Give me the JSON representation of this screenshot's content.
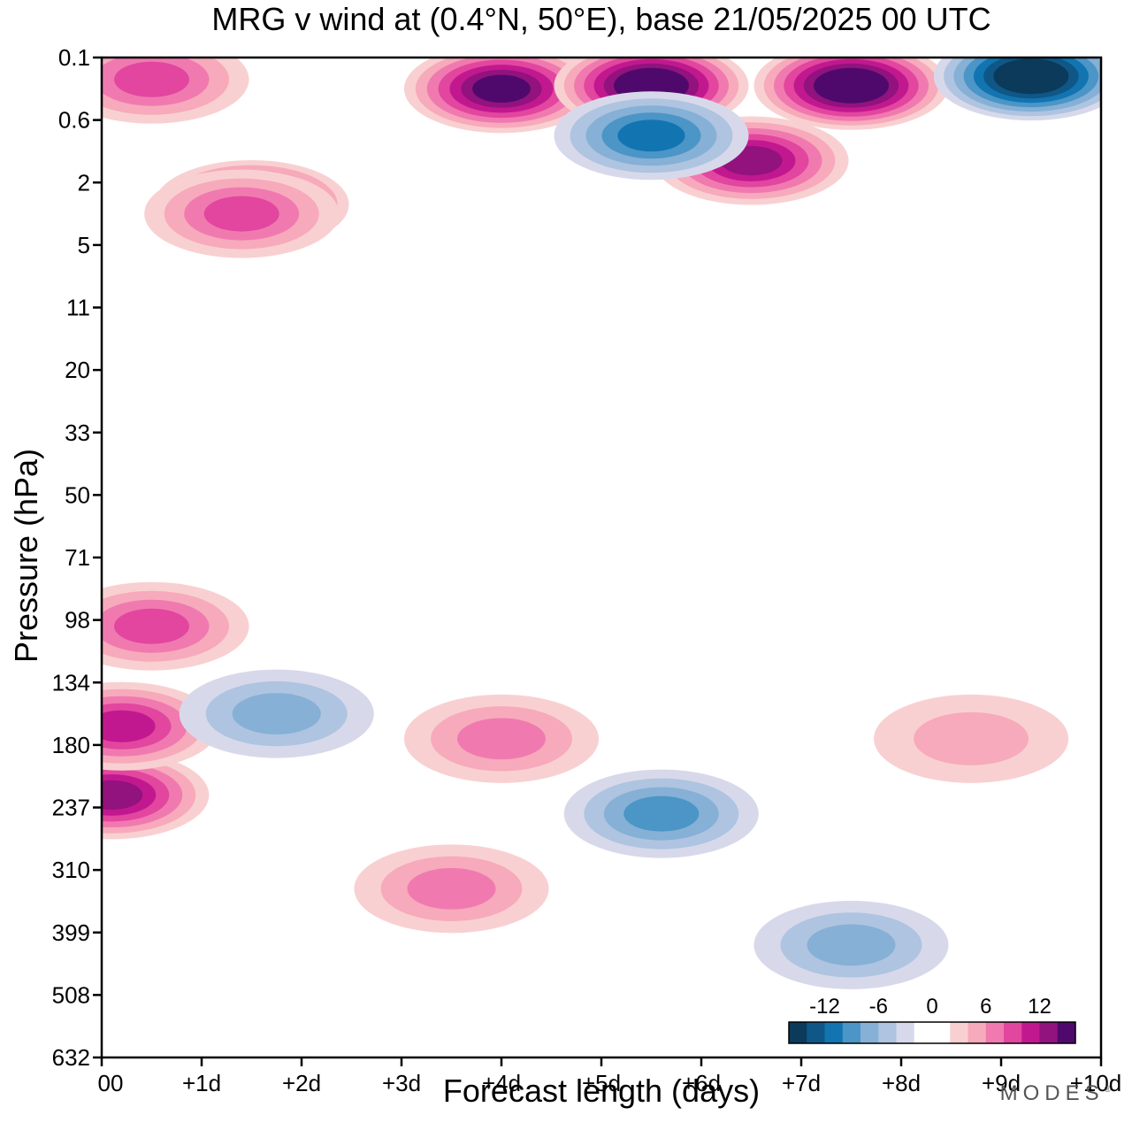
{
  "chart_data": {
    "type": "heatmap",
    "title": "MRG v wind at (0.4°N, 50°E),  base 21/05/2025  00 UTC",
    "xlabel": "Forecast length (days)",
    "ylabel": "Pressure (hPa)",
    "x_ticks": [
      "00",
      "+1d",
      "+2d",
      "+3d",
      "+4d",
      "+5d",
      "+6d",
      "+7d",
      "+8d",
      "+9d",
      "+10d"
    ],
    "y_ticks": [
      "0.1",
      "0.6",
      "2",
      "5",
      "11",
      "20",
      "33",
      "50",
      "71",
      "98",
      "134",
      "180",
      "237",
      "310",
      "399",
      "508",
      "632"
    ],
    "xlim": [
      0,
      10
    ],
    "y_scale": "pressure levels (inverted, top = 0.1 hPa)",
    "colorbar": {
      "tick_labels": [
        "-12",
        "-6",
        "0",
        "6",
        "12"
      ],
      "levels": [
        -16,
        -14,
        -12,
        -10,
        -8,
        -6,
        -4,
        -2,
        0,
        2,
        4,
        6,
        8,
        10,
        12,
        14,
        16
      ],
      "colors": [
        "#0b3a5a",
        "#0e5786",
        "#1274b1",
        "#4b95c7",
        "#86b0d5",
        "#aec4e0",
        "#d7d9ea",
        "#ffffff",
        "#ffffff",
        "#f9d0d1",
        "#f7aabb",
        "#f07ab0",
        "#e2469f",
        "#c2188f",
        "#92127e",
        "#4f096c"
      ],
      "location": "bottom-right inside plot"
    },
    "features": [
      {
        "x": 0.1,
        "y": 11.8,
        "v": 12
      },
      {
        "x": 0.2,
        "y": 10.7,
        "v": 10
      },
      {
        "x": 0.5,
        "y": 9.1,
        "v": 8
      },
      {
        "x": 1.5,
        "y": 2.35,
        "v": 14
      },
      {
        "x": 1.4,
        "y": 2.5,
        "v": 8
      },
      {
        "x": 0.5,
        "y": 0.35,
        "v": 8
      },
      {
        "x": 4.0,
        "y": 0.5,
        "v": 14
      },
      {
        "x": 5.5,
        "y": 0.45,
        "v": 16
      },
      {
        "x": 7.5,
        "y": 0.45,
        "v": 16
      },
      {
        "x": 6.5,
        "y": 1.65,
        "v": 12
      },
      {
        "x": 5.5,
        "y": 1.25,
        "v": -10
      },
      {
        "x": 9.3,
        "y": 0.3,
        "v": -16
      },
      {
        "x": 3.5,
        "y": 13.3,
        "v": 6
      },
      {
        "x": 1.75,
        "y": 10.5,
        "v": -6
      },
      {
        "x": 5.6,
        "y": 12.1,
        "v": -8
      },
      {
        "x": 7.5,
        "y": 14.2,
        "v": -6
      },
      {
        "x": 4.0,
        "y": 10.9,
        "v": 6
      },
      {
        "x": 8.7,
        "y": 10.9,
        "v": 4
      }
    ]
  }
}
